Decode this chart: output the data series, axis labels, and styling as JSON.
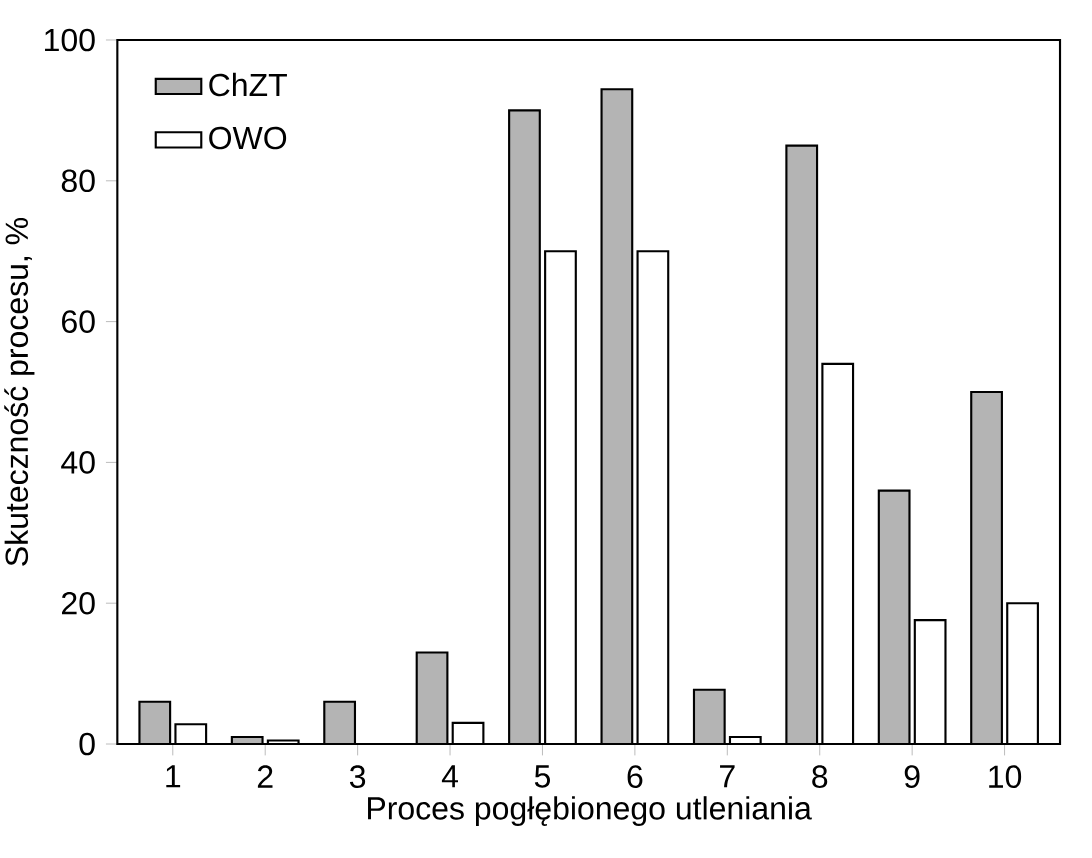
{
  "chart_data": {
    "type": "bar",
    "xlabel": "Proces pogłębionego utleniania",
    "ylabel": "Skuteczność procesu, %",
    "categories": [
      "1",
      "2",
      "3",
      "4",
      "5",
      "6",
      "7",
      "8",
      "9",
      "10"
    ],
    "series": [
      {
        "name": "ChZT",
        "color": "#b4b4b4",
        "values": [
          6,
          1,
          6,
          13,
          90,
          93,
          7.7,
          85,
          36,
          50
        ]
      },
      {
        "name": "OWO",
        "color": "#ffffff",
        "values": [
          2.8,
          0.5,
          null,
          3,
          70,
          70,
          1,
          54,
          17.6,
          20
        ]
      }
    ],
    "ylim": [
      0,
      100
    ],
    "yticks": [
      0,
      20,
      40,
      60,
      80,
      100
    ],
    "legend": "top left",
    "grid": false
  }
}
